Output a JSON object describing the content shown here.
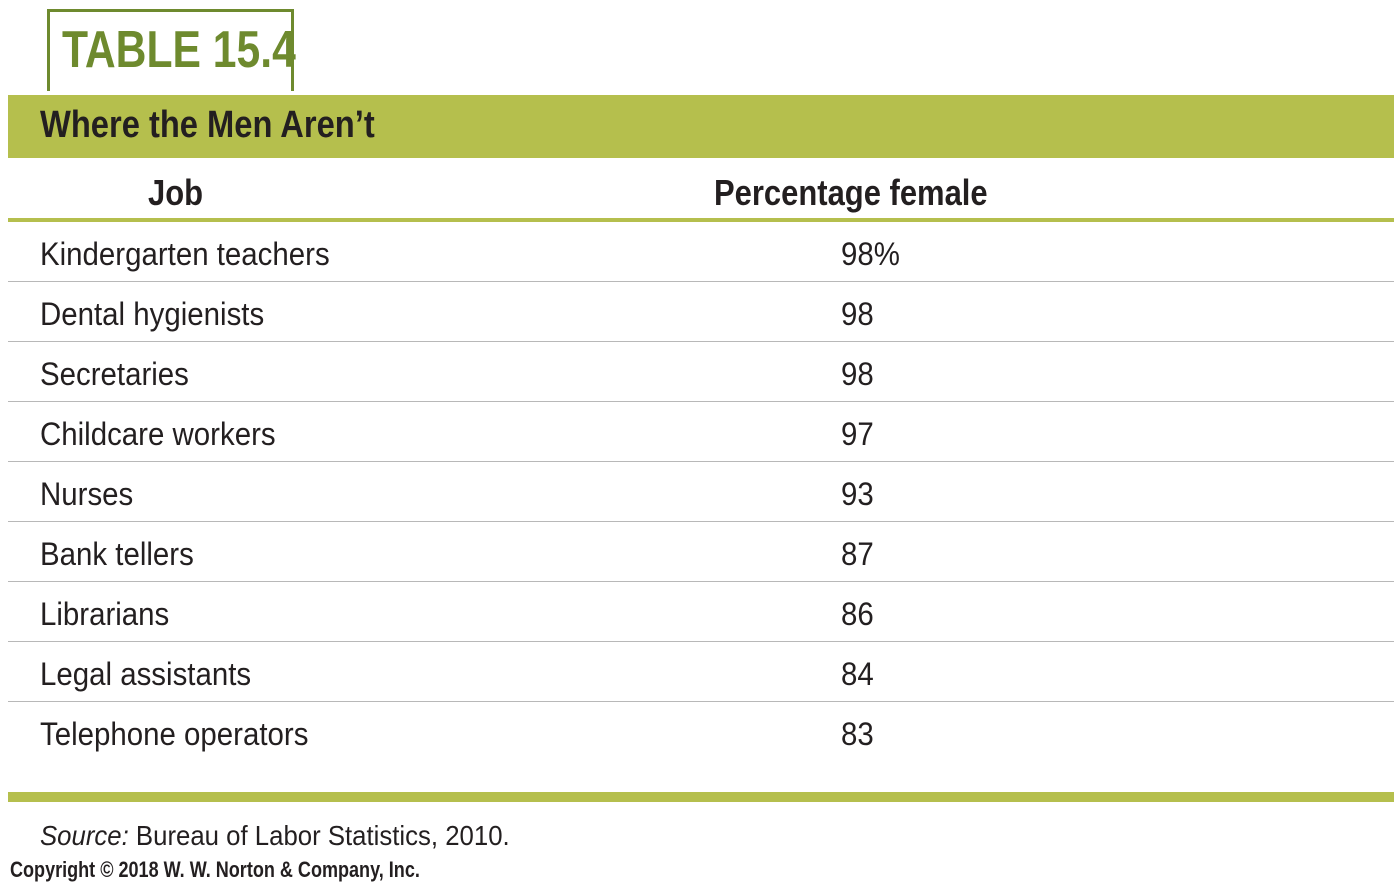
{
  "table_label": "TABLE 15.4",
  "title": "Where the Men Aren’t",
  "headers": {
    "job": "Job",
    "percentage": "Percentage female"
  },
  "rows": [
    {
      "job": "Kindergarten teachers",
      "pct": "98%"
    },
    {
      "job": "Dental hygienists",
      "pct": "98"
    },
    {
      "job": "Secretaries",
      "pct": "98"
    },
    {
      "job": "Childcare workers",
      "pct": "97"
    },
    {
      "job": "Nurses",
      "pct": "93"
    },
    {
      "job": "Bank tellers",
      "pct": "87"
    },
    {
      "job": "Librarians",
      "pct": "86"
    },
    {
      "job": "Legal assistants",
      "pct": "84"
    },
    {
      "job": "Telephone operators",
      "pct": "83"
    }
  ],
  "source": {
    "label": "Source:",
    "text": " Bureau of Labor Statistics, 2010."
  },
  "copyright": "Copyright © 2018 W. W. Norton & Company, Inc.",
  "colors": {
    "accent_dark": "#6e8a2e",
    "accent_light": "#b5bf4d",
    "text": "#231f20",
    "row_rule": "#b8b8b8"
  }
}
